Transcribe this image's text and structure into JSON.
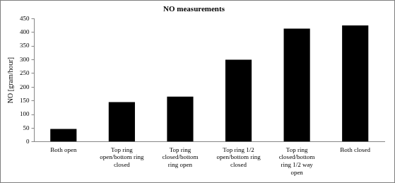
{
  "chart_data": {
    "type": "bar",
    "title": "NO measurements",
    "y_label": "NO [gram/hour]",
    "categories": [
      "Both open",
      "Top ring open/bottom ring closed",
      "Top ring closed/bottom ring open",
      "Top ring 1/2 open/bottom ring closed",
      "Top ring closed/bottom ring 1/2 way open",
      "Both closed"
    ],
    "values": [
      47,
      145,
      165,
      300,
      413,
      425
    ],
    "color": "#000000",
    "ylim": [
      0,
      450
    ],
    "yticks": [
      0,
      50,
      100,
      150,
      200,
      250,
      300,
      350,
      400,
      450
    ],
    "grid": false
  }
}
